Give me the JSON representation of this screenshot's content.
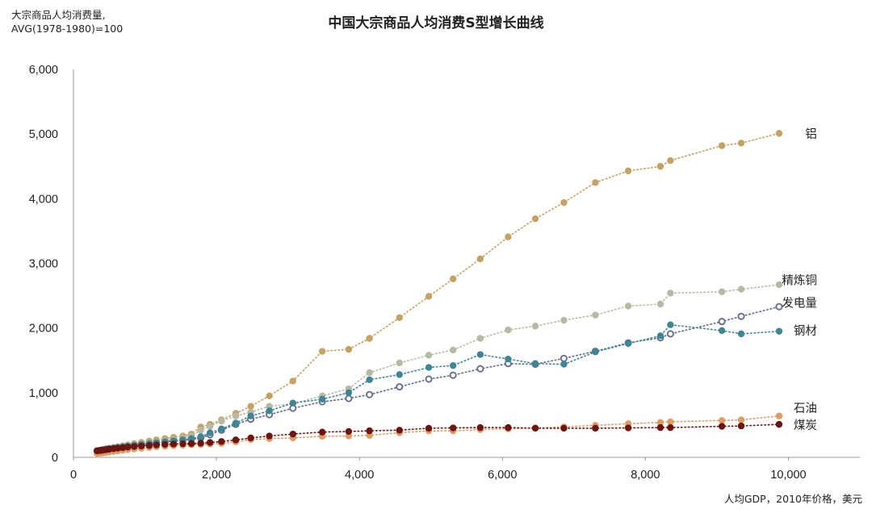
{
  "chart_data": {
    "type": "scatter",
    "title": "中国大宗商品人均消费S型增长曲线",
    "ylabel_line1": "大宗商品人均消费量,",
    "ylabel_line2": "AVG(1978-1980)=100",
    "xlabel": "人均GDP，2010年价格，美元",
    "xlim": [
      0,
      11000
    ],
    "ylim": [
      0,
      6000
    ],
    "x_ticks": [
      "0",
      "2,000",
      "4,000",
      "6,000",
      "8,000",
      "10,000"
    ],
    "x_tick_values": [
      0,
      2000,
      4000,
      6000,
      8000,
      10000
    ],
    "y_ticks": [
      "0",
      "1,000",
      "2,000",
      "3,000",
      "4,000",
      "5,000",
      "6,000"
    ],
    "y_tick_values": [
      0,
      1000,
      2000,
      3000,
      4000,
      5000,
      6000
    ],
    "grid": false,
    "x": [
      330,
      360,
      390,
      420,
      460,
      500,
      560,
      620,
      690,
      760,
      850,
      950,
      1060,
      1160,
      1280,
      1400,
      1530,
      1650,
      1780,
      1910,
      2070,
      2270,
      2480,
      2740,
      3070,
      3480,
      3850,
      4140,
      4560,
      4970,
      5310,
      5690,
      6080,
      6460,
      6860,
      7300,
      7760,
      8210,
      8350,
      9070,
      9340,
      9870
    ],
    "series": [
      {
        "name": "铝",
        "color": "#c5a264",
        "values": [
          100,
          105,
          112,
          120,
          132,
          142,
          152,
          165,
          178,
          192,
          212,
          232,
          252,
          270,
          290,
          310,
          330,
          360,
          470,
          510,
          580,
          680,
          790,
          950,
          1180,
          1640,
          1670,
          1840,
          2160,
          2490,
          2760,
          3070,
          3410,
          3690,
          3940,
          4250,
          4430,
          4500,
          4590,
          4820,
          4860,
          5010
        ]
      },
      {
        "name": "精炼铜",
        "color": "#b8b9a3",
        "values": [
          100,
          104,
          110,
          118,
          128,
          138,
          150,
          160,
          170,
          182,
          195,
          210,
          225,
          240,
          258,
          278,
          300,
          330,
          420,
          480,
          560,
          640,
          700,
          790,
          830,
          950,
          1060,
          1310,
          1460,
          1580,
          1660,
          1840,
          1970,
          2030,
          2120,
          2200,
          2340,
          2370,
          2540,
          2560,
          2600,
          2670
        ]
      },
      {
        "name": "发电量",
        "color": "#5d6a8a",
        "hollow": true,
        "values": [
          100,
          104,
          110,
          116,
          124,
          132,
          140,
          150,
          160,
          170,
          182,
          195,
          208,
          222,
          236,
          250,
          264,
          280,
          300,
          350,
          420,
          510,
          590,
          660,
          760,
          860,
          910,
          970,
          1090,
          1210,
          1270,
          1370,
          1450,
          1440,
          1530,
          1640,
          1770,
          1850,
          1910,
          2100,
          2180,
          2330
        ]
      },
      {
        "name": "钢材",
        "color": "#3f8695",
        "values": [
          100,
          104,
          110,
          116,
          124,
          132,
          140,
          150,
          160,
          172,
          185,
          198,
          212,
          226,
          240,
          255,
          270,
          290,
          320,
          380,
          440,
          530,
          640,
          720,
          840,
          900,
          1000,
          1200,
          1280,
          1390,
          1420,
          1590,
          1520,
          1450,
          1440,
          1630,
          1760,
          1880,
          2050,
          1960,
          1910,
          1950
        ]
      },
      {
        "name": "石油",
        "color": "#e09a64",
        "values": [
          60,
          64,
          68,
          72,
          78,
          84,
          92,
          100,
          110,
          120,
          130,
          140,
          152,
          164,
          172,
          180,
          188,
          194,
          198,
          205,
          215,
          240,
          275,
          290,
          300,
          325,
          330,
          340,
          380,
          410,
          410,
          430,
          440,
          455,
          470,
          495,
          520,
          540,
          550,
          570,
          580,
          640
        ]
      },
      {
        "name": "煤炭",
        "color": "#6b1410",
        "values": [
          100,
          104,
          108,
          114,
          120,
          126,
          134,
          142,
          150,
          160,
          168,
          176,
          184,
          192,
          200,
          206,
          210,
          214,
          220,
          230,
          245,
          270,
          300,
          330,
          360,
          390,
          400,
          410,
          420,
          450,
          455,
          460,
          460,
          450,
          450,
          450,
          455,
          460,
          460,
          480,
          485,
          510
        ]
      }
    ],
    "label_y": [
      5000,
      2740,
      2390,
      1960,
      760,
      500
    ],
    "label_x": 10400
  }
}
